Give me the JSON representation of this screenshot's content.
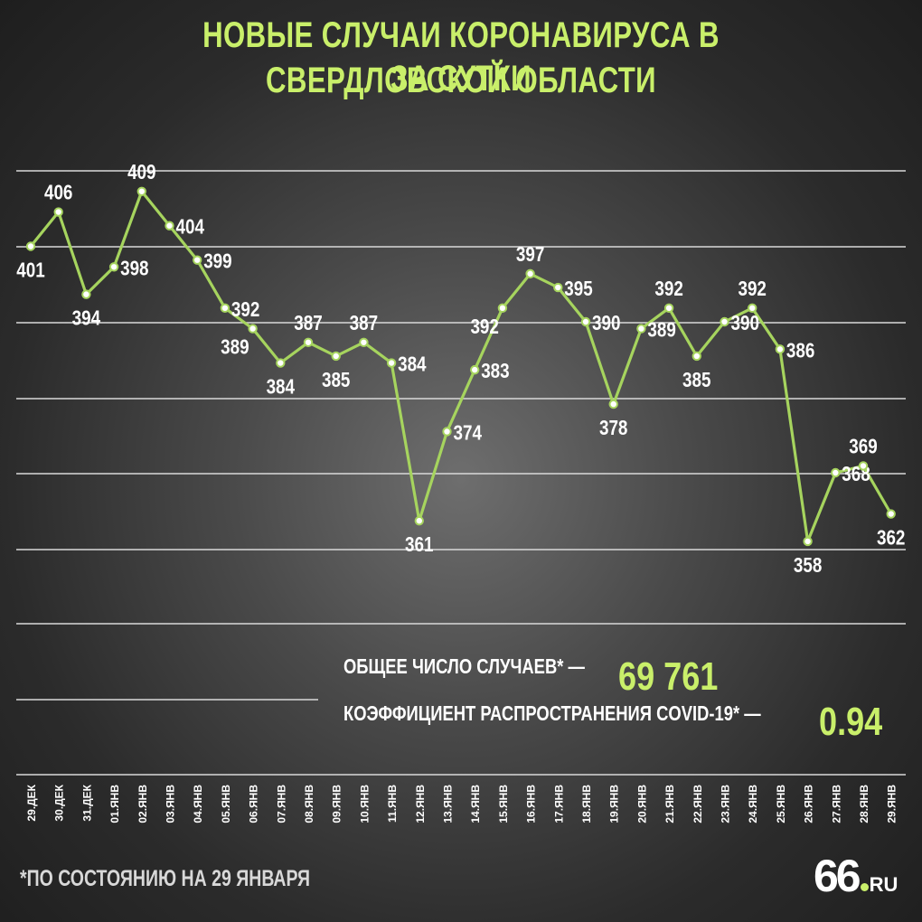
{
  "title": {
    "line1": "НОВЫЕ СЛУЧАИ КОРОНАВИРУСА В СВЕРДЛОВСКОЙ ОБЛАСТИ",
    "line2": "ЗА СУТКИ"
  },
  "summary": {
    "total_label": "ОБЩЕЕ ЧИСЛО СЛУЧАЕВ* —",
    "total_value": "69 761",
    "rate_label": "КОЭФФИЦИЕНТ РАСПРОСТРАНЕНИЯ COVID-19* —",
    "rate_value": "0.94"
  },
  "footnote": "*ПО СОСТОЯНИЮ НА 29 ЯНВАРЯ",
  "logo": {
    "number": "66",
    "domain": "RU"
  },
  "colors": {
    "accent": "#c9ef6a",
    "line": "#a6d45e",
    "grid": "#d9d9d9",
    "text": "#ffffff"
  },
  "chart_data": {
    "type": "line",
    "title": "НОВЫЕ СЛУЧАИ КОРОНАВИРУСА В СВЕРДЛОВСКОЙ ОБЛАСТИ ЗА СУТКИ",
    "categories": [
      "29.ДЕК",
      "30.ДЕК",
      "31.ДЕК",
      "01.ЯНВ",
      "02.ЯНВ",
      "03.ЯНВ",
      "04.ЯНВ",
      "05.ЯНВ",
      "06.ЯНВ",
      "07.ЯНВ",
      "08.ЯНВ",
      "09.ЯНВ",
      "10.ЯНВ",
      "11.ЯНВ",
      "12.ЯНВ",
      "13.ЯНВ",
      "14.ЯНВ",
      "15.ЯНВ",
      "16.ЯНВ",
      "17.ЯНВ",
      "18.ЯНВ",
      "19.ЯНВ",
      "20.ЯНВ",
      "21.ЯНВ",
      "22.ЯНВ",
      "23.ЯНВ",
      "24.ЯНВ",
      "25.ЯНВ",
      "26.ЯНВ",
      "27.ЯНВ",
      "28.ЯНВ",
      "29.ЯНВ"
    ],
    "values": [
      401,
      406,
      394,
      398,
      409,
      404,
      399,
      392,
      389,
      384,
      387,
      385,
      387,
      384,
      361,
      374,
      383,
      392,
      397,
      395,
      390,
      378,
      389,
      392,
      385,
      390,
      392,
      386,
      358,
      368,
      369,
      362
    ],
    "label_side": [
      "below",
      "above",
      "below",
      "right",
      "above",
      "right",
      "right",
      "right",
      "left",
      "below",
      "above",
      "below",
      "above",
      "right",
      "below",
      "right",
      "right",
      "left",
      "above",
      "right",
      "right",
      "below",
      "right",
      "above",
      "below",
      "right",
      "above",
      "right",
      "below",
      "right",
      "above",
      "below"
    ],
    "ylim": [
      346,
      412
    ],
    "grid": true,
    "legend": "none"
  }
}
